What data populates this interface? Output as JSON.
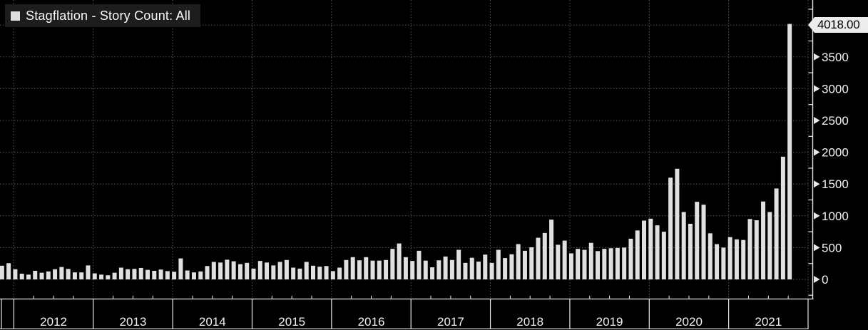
{
  "legend": {
    "label": "Stagflation - Story Count: All",
    "marker_color": "#e0e0e0"
  },
  "colors": {
    "background": "#000000",
    "bar": "#e0e0e0",
    "grid": "#585858",
    "axis": "#e8e8e8",
    "text": "#f2f2f2",
    "legend_bg": "#1d1d1d",
    "callout_bg": "#ececec",
    "callout_text": "#000000"
  },
  "x_axis": {
    "year_labels": [
      "2012",
      "2013",
      "2014",
      "2015",
      "2016",
      "2017",
      "2018",
      "2019",
      "2020",
      "2021"
    ]
  },
  "y_axis": {
    "tick_labels": [
      "0",
      "500",
      "1000",
      "1500",
      "2000",
      "2500",
      "3000",
      "3500"
    ],
    "tick_values": [
      0,
      500,
      1000,
      1500,
      2000,
      2500,
      3000,
      3500
    ],
    "minor_tick_values": [
      -250,
      250,
      750,
      1250,
      1750,
      2250,
      2750,
      3250,
      3750,
      4250
    ],
    "callout_value": "4018.00"
  },
  "chart_data": {
    "type": "bar",
    "title": "Stagflation - Story Count: All",
    "frequency": "monthly",
    "x_start_month": "2011-11",
    "x_end_month": "2021-10",
    "ylim": [
      0,
      4250
    ],
    "y_gridline_step": 500,
    "grid": true,
    "legend_position": "top-left",
    "last_value": 4018,
    "values": [
      215,
      255,
      160,
      90,
      75,
      135,
      105,
      125,
      160,
      195,
      165,
      110,
      110,
      220,
      95,
      75,
      65,
      105,
      185,
      160,
      165,
      180,
      150,
      135,
      155,
      130,
      120,
      330,
      140,
      110,
      125,
      210,
      275,
      265,
      310,
      285,
      240,
      260,
      170,
      290,
      265,
      220,
      275,
      305,
      185,
      170,
      275,
      215,
      200,
      210,
      130,
      185,
      305,
      350,
      300,
      350,
      295,
      295,
      305,
      480,
      565,
      350,
      290,
      450,
      295,
      190,
      300,
      360,
      305,
      465,
      260,
      340,
      280,
      390,
      260,
      465,
      335,
      395,
      555,
      450,
      505,
      655,
      730,
      940,
      545,
      610,
      410,
      480,
      465,
      575,
      445,
      480,
      490,
      495,
      500,
      640,
      770,
      925,
      955,
      850,
      750,
      1600,
      1740,
      1060,
      875,
      1220,
      1175,
      725,
      555,
      500,
      665,
      630,
      620,
      950,
      930,
      1225,
      1060,
      1430,
      1930,
      4018
    ]
  }
}
